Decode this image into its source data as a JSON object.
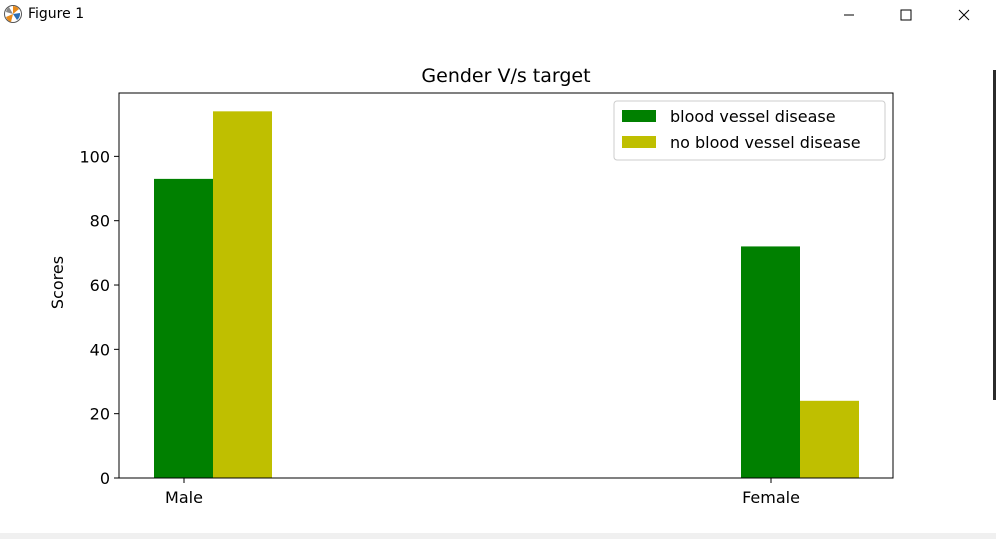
{
  "window": {
    "title": "Figure 1",
    "minimize_icon": "minimize-icon",
    "maximize_icon": "maximize-icon",
    "close_icon": "close-icon",
    "app_icon": "matplotlib-logo-icon"
  },
  "chart_data": {
    "type": "bar",
    "title": "Gender V/s target",
    "xlabel": "",
    "ylabel": "Scores",
    "categories": [
      "Male",
      "Female"
    ],
    "series": [
      {
        "name": "blood vessel disease",
        "values": [
          93,
          72
        ],
        "color": "#008000"
      },
      {
        "name": "no blood vessel disease",
        "values": [
          114,
          24
        ],
        "color": "#bfbf00"
      }
    ],
    "ylim": [
      0,
      119.7
    ],
    "yticks": [
      0,
      20,
      40,
      60,
      80,
      100
    ],
    "legend_position": "top-right",
    "grid": false
  }
}
